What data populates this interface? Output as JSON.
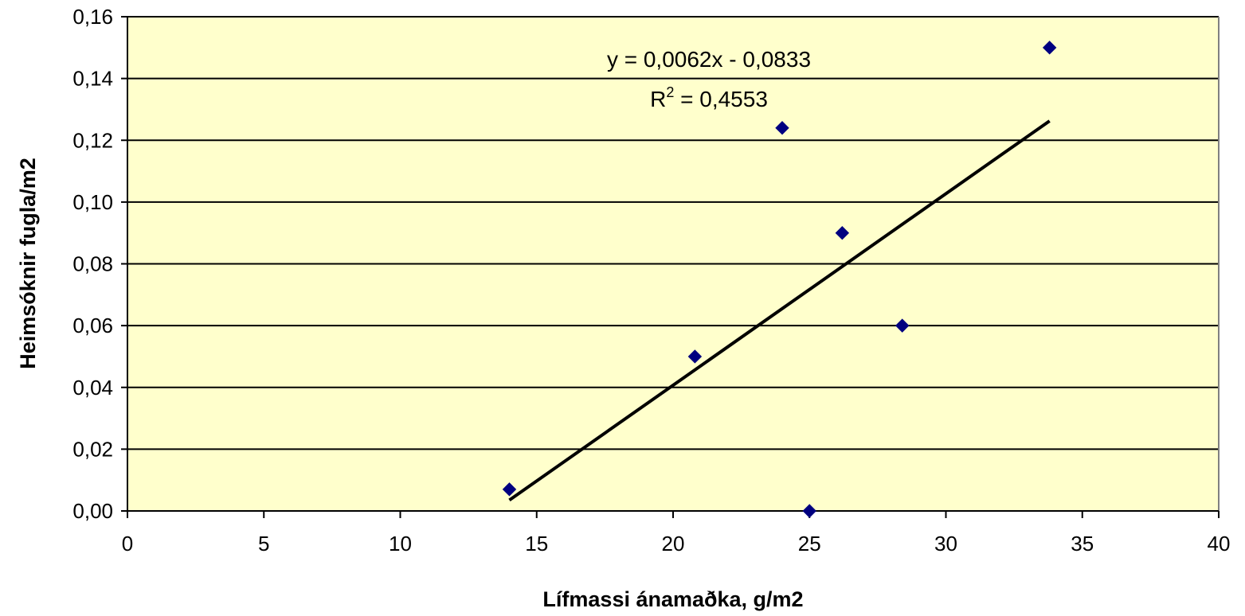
{
  "chart_data": {
    "type": "scatter",
    "title": "",
    "xlabel": "Lífmassi ánamaðka, g/m2",
    "ylabel": "Heimsóknir fugla/m2",
    "xlim": [
      0,
      40
    ],
    "ylim": [
      0,
      0.16
    ],
    "x_ticks": [
      0,
      5,
      10,
      15,
      20,
      25,
      30,
      35,
      40
    ],
    "x_tick_labels": [
      "0",
      "5",
      "10",
      "15",
      "20",
      "25",
      "30",
      "35",
      "40"
    ],
    "y_ticks": [
      0,
      0.02,
      0.04,
      0.06,
      0.08,
      0.1,
      0.12,
      0.14,
      0.16
    ],
    "y_tick_labels": [
      "0,00",
      "0,02",
      "0,04",
      "0,06",
      "0,08",
      "0,10",
      "0,12",
      "0,14",
      "0,16"
    ],
    "grid": "horizontal major gridlines",
    "plot_background": "#FFFFCC",
    "marker_color": "#000080",
    "marker_shape": "diamond",
    "trendline_color": "#000000",
    "series": [
      {
        "points": [
          {
            "x": 14.0,
            "y": 0.007
          },
          {
            "x": 20.8,
            "y": 0.05
          },
          {
            "x": 24.0,
            "y": 0.124
          },
          {
            "x": 25.0,
            "y": 0.0
          },
          {
            "x": 26.2,
            "y": 0.09
          },
          {
            "x": 28.4,
            "y": 0.06
          },
          {
            "x": 33.8,
            "y": 0.15
          }
        ]
      }
    ],
    "trendline": {
      "type": "linear",
      "slope": 0.0062,
      "intercept": -0.0833,
      "x_range": [
        14.0,
        33.8
      ],
      "equation_text": "y = 0,0062x - 0,0833",
      "r2_prefix": "R",
      "r2_superscript": "2",
      "r2_value_text": " = 0,4553"
    }
  }
}
